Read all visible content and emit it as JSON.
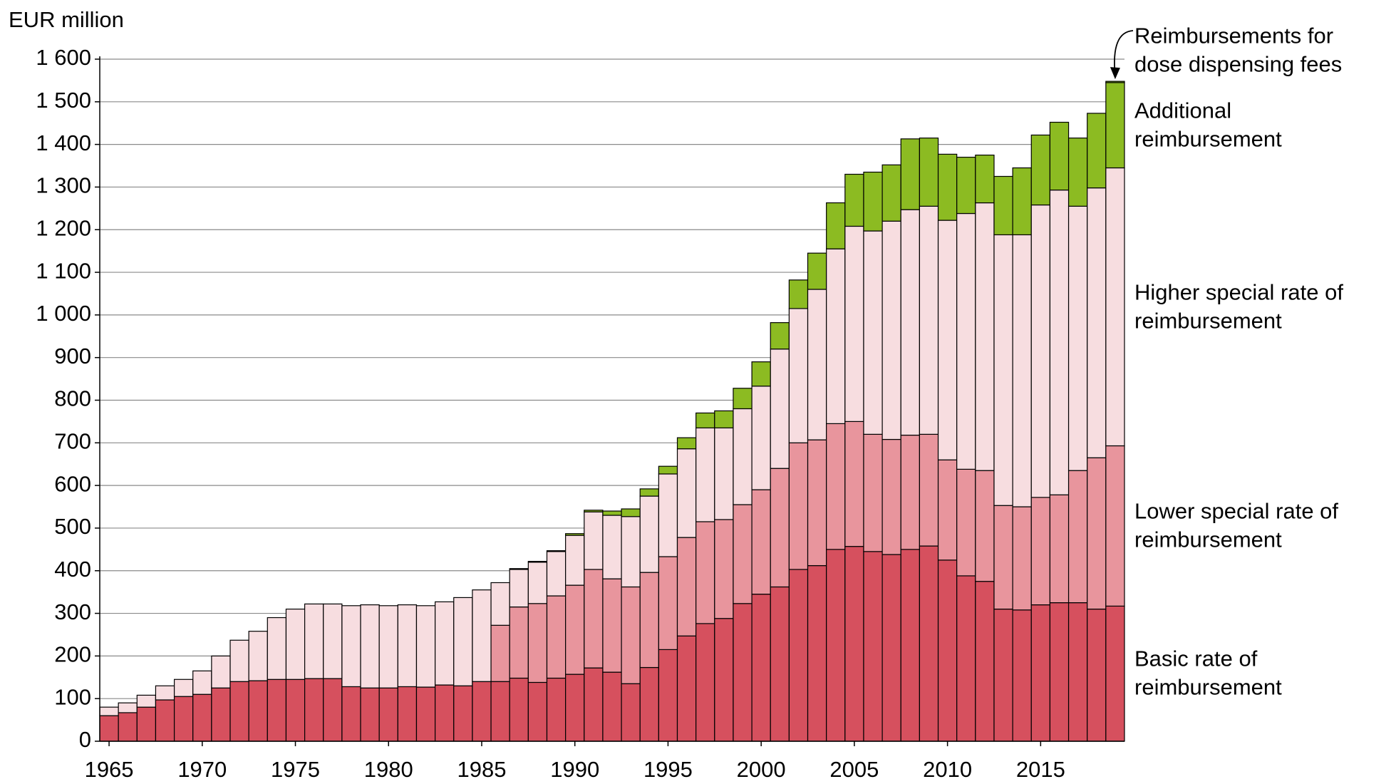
{
  "chart_data": {
    "type": "stacked_bar",
    "y_label": "EUR million",
    "categories": [
      1965,
      null,
      null,
      null,
      null,
      1970,
      null,
      null,
      null,
      null,
      1975,
      null,
      null,
      null,
      null,
      1980,
      null,
      null,
      null,
      null,
      1985,
      null,
      null,
      null,
      null,
      1990,
      null,
      null,
      null,
      null,
      1995,
      null,
      null,
      null,
      null,
      2000,
      null,
      null,
      null,
      null,
      2005,
      null,
      null,
      null,
      null,
      2010,
      null,
      null,
      null,
      null,
      2015,
      null,
      null,
      null,
      null
    ],
    "series": [
      {
        "name": "Basic rate of reimbursement",
        "color": "#d6505e",
        "values": [
          60,
          67,
          80,
          97,
          105,
          110,
          125,
          140,
          142,
          145,
          145,
          147,
          147,
          128,
          125,
          125,
          128,
          127,
          132,
          130,
          140,
          140,
          148,
          138,
          148,
          157,
          172,
          162,
          135,
          173,
          215,
          247,
          276,
          288,
          323,
          345,
          362,
          403,
          412,
          450,
          457,
          445,
          438,
          450,
          458,
          425,
          388,
          375,
          310,
          308,
          320,
          325,
          325,
          310,
          317
        ]
      },
      {
        "name": "Lower special rate of reimbursement",
        "color": "#e8959d",
        "values": [
          null,
          null,
          null,
          null,
          null,
          null,
          null,
          null,
          null,
          null,
          null,
          null,
          null,
          null,
          null,
          null,
          null,
          null,
          null,
          null,
          null,
          132,
          167,
          185,
          193,
          209,
          231,
          219,
          227,
          223,
          218,
          231,
          239,
          232,
          232,
          245,
          278,
          297,
          295,
          295,
          293,
          275,
          270,
          268,
          262,
          235,
          250,
          260,
          243,
          242,
          252,
          253,
          310,
          355,
          376
        ]
      },
      {
        "name": "Higher special rate of reimbursement",
        "color": "#f7dde0",
        "values": [
          20,
          23,
          28,
          33,
          40,
          55,
          75,
          97,
          116,
          145,
          165,
          175,
          175,
          190,
          195,
          193,
          192,
          191,
          195,
          207,
          215,
          100,
          88,
          97,
          104,
          117,
          135,
          149,
          165,
          179,
          194,
          208,
          220,
          215,
          225,
          243,
          280,
          315,
          353,
          410,
          458,
          477,
          512,
          529,
          535,
          562,
          600,
          628,
          635,
          638,
          686,
          715,
          620,
          633,
          652
        ]
      },
      {
        "name": "Additional reimbursement",
        "color": "#8cbb22",
        "values": [
          null,
          null,
          null,
          null,
          null,
          null,
          null,
          null,
          null,
          null,
          null,
          null,
          null,
          null,
          null,
          null,
          null,
          null,
          null,
          null,
          null,
          null,
          2,
          2,
          2,
          4,
          4,
          10,
          18,
          17,
          18,
          26,
          35,
          40,
          48,
          57,
          62,
          67,
          85,
          108,
          122,
          138,
          132,
          166,
          160,
          155,
          132,
          112,
          137,
          157,
          164,
          159,
          160,
          175,
          200
        ]
      },
      {
        "name": "Reimbursements for dose dispensing fees",
        "color": "#6f9d18",
        "values": [
          null,
          null,
          null,
          null,
          null,
          null,
          null,
          null,
          null,
          null,
          null,
          null,
          null,
          null,
          null,
          null,
          null,
          null,
          null,
          null,
          null,
          null,
          null,
          null,
          null,
          null,
          null,
          null,
          null,
          null,
          null,
          null,
          null,
          null,
          null,
          null,
          null,
          null,
          null,
          null,
          null,
          null,
          null,
          null,
          null,
          null,
          null,
          null,
          null,
          null,
          null,
          null,
          null,
          null,
          3
        ]
      }
    ],
    "ylim": [
      0,
      1600
    ],
    "yticks": [
      0,
      100,
      200,
      300,
      400,
      500,
      600,
      700,
      800,
      900,
      {
        "value": 1000,
        "label": "1 000"
      },
      {
        "value": 1100,
        "label": "1 100"
      },
      {
        "value": 1200,
        "label": "1 200"
      },
      {
        "value": 1300,
        "label": "1 300"
      },
      {
        "value": 1400,
        "label": "1 400"
      },
      {
        "value": 1500,
        "label": "1 500"
      },
      {
        "value": 1600,
        "label": "1 600"
      }
    ],
    "grid": true
  }
}
